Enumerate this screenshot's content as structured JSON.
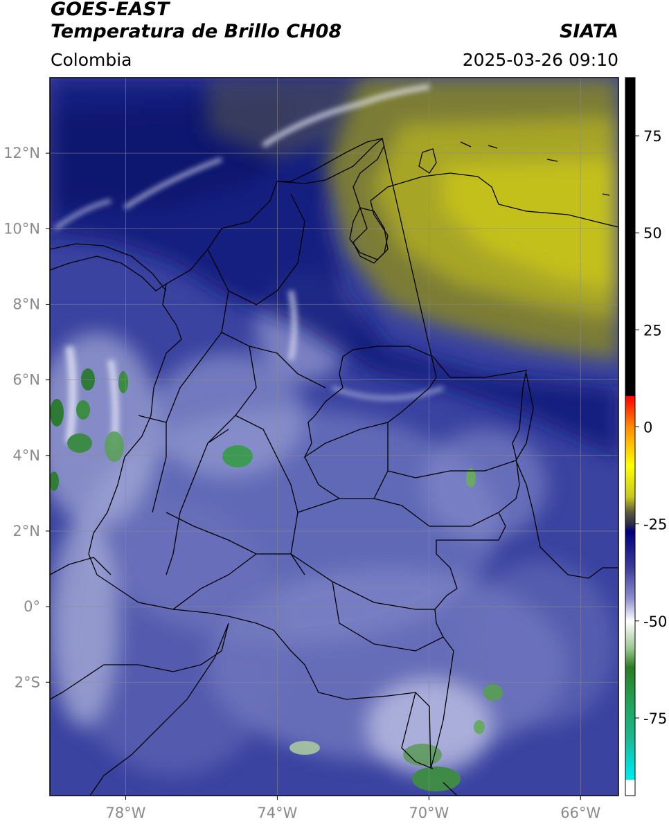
{
  "header": {
    "satellite": "GOES-EAST",
    "product": "Temperatura de Brillo CH08",
    "source": "SIATA",
    "region": "Colombia",
    "timestamp": "2025-03-26 09:10"
  },
  "map": {
    "lon_range": [
      -80,
      -65
    ],
    "lat_range": [
      -5,
      14
    ],
    "lon_ticks": [
      {
        "value": -78,
        "label": "78°W"
      },
      {
        "value": -74,
        "label": "74°W"
      },
      {
        "value": -70,
        "label": "70°W"
      },
      {
        "value": -66,
        "label": "66°W"
      }
    ],
    "lat_ticks": [
      {
        "value": 12,
        "label": "12°N"
      },
      {
        "value": 10,
        "label": "10°N"
      },
      {
        "value": 8,
        "label": "8°N"
      },
      {
        "value": 6,
        "label": "6°N"
      },
      {
        "value": 4,
        "label": "4°N"
      },
      {
        "value": 2,
        "label": "2°N"
      },
      {
        "value": 0,
        "label": "0°"
      },
      {
        "value": -2,
        "label": "2°S"
      }
    ],
    "gridlines": true
  },
  "colorbar": {
    "range": [
      -95,
      90
    ],
    "ticks": [
      {
        "value": 75,
        "label": "75"
      },
      {
        "value": 50,
        "label": "50"
      },
      {
        "value": 25,
        "label": "25"
      },
      {
        "value": 0,
        "label": "0"
      },
      {
        "value": -25,
        "label": "-25"
      },
      {
        "value": -50,
        "label": "-50"
      },
      {
        "value": -75,
        "label": "-75"
      }
    ],
    "stops": [
      {
        "value": 90,
        "color": "#000000"
      },
      {
        "value": 8,
        "color": "#000000"
      },
      {
        "value": 7.9,
        "color": "#ff0000"
      },
      {
        "value": 0,
        "color": "#ff8c00"
      },
      {
        "value": -10,
        "color": "#ffff00"
      },
      {
        "value": -18,
        "color": "#c8c81e"
      },
      {
        "value": -22,
        "color": "#5a5a3c"
      },
      {
        "value": -25,
        "color": "#2d2d46"
      },
      {
        "value": -27,
        "color": "#000080"
      },
      {
        "value": -36,
        "color": "#3a3a98"
      },
      {
        "value": -44,
        "color": "#8a8acc"
      },
      {
        "value": -50,
        "color": "#ffffff"
      },
      {
        "value": -57,
        "color": "#9cc890"
      },
      {
        "value": -62,
        "color": "#2a7a22"
      },
      {
        "value": -70,
        "color": "#22a050"
      },
      {
        "value": -80,
        "color": "#1ab890"
      },
      {
        "value": -88,
        "color": "#00e0e0"
      },
      {
        "value": -90.9,
        "color": "#00e8e8"
      },
      {
        "value": -91,
        "color": "#ffffff"
      },
      {
        "value": -95,
        "color": "#ffffff"
      }
    ]
  },
  "palette": {
    "ocean_blue": "#2e3a9a",
    "dark_navy": "#0d1574",
    "land_blue": "#4a52a8",
    "light_cloud": "#9ea3d6",
    "white_cloud": "#e6e8f4",
    "olive": "#a8a826",
    "yellow": "#c8c81e",
    "green": "#3c9a4a",
    "border": "#000000",
    "grid": "#8c8c8c",
    "tick_label": "#8a8a8a"
  }
}
